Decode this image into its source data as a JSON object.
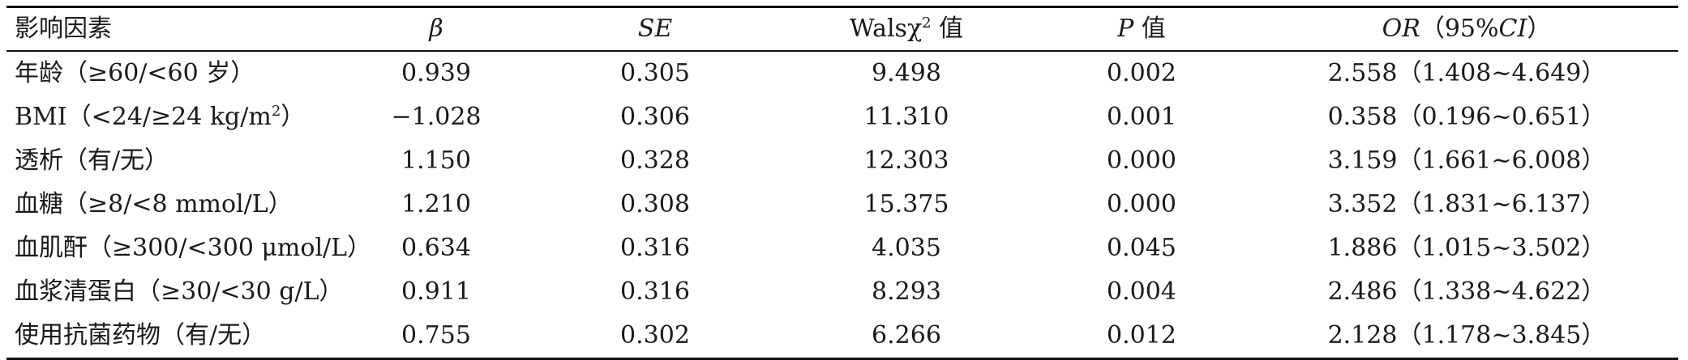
{
  "table": {
    "headers": {
      "factor": "影响因素",
      "beta": "β",
      "se": "SE",
      "wals_prefix": "Walsχ",
      "wals_sup": "2",
      "wals_suffix": " 值",
      "p_italic": "P",
      "p_suffix": " 值",
      "or_italic": "OR",
      "or_mid": "（95%",
      "or_ci": "CI",
      "or_end": "）"
    },
    "rows": [
      {
        "factor": "年龄（≥60/<60 岁）",
        "beta": "0.939",
        "se": "0.305",
        "wals": "9.498",
        "p": "0.002",
        "or": "2.558（1.408~4.649）"
      },
      {
        "factor_prefix": "BMI（<24/≥24 kg/m",
        "factor_sup": "2",
        "factor_suffix": "）",
        "beta": "−1.028",
        "se": "0.306",
        "wals": "11.310",
        "p": "0.001",
        "or": "0.358（0.196~0.651）"
      },
      {
        "factor": "透析（有/无）",
        "beta": "1.150",
        "se": "0.328",
        "wals": "12.303",
        "p": "0.000",
        "or": "3.159（1.661~6.008）"
      },
      {
        "factor": "血糖（≥8/<8 mmol/L）",
        "beta": "1.210",
        "se": "0.308",
        "wals": "15.375",
        "p": "0.000",
        "or": "3.352（1.831~6.137）"
      },
      {
        "factor": "血肌酐（≥300/<300 μmol/L）",
        "beta": "0.634",
        "se": "0.316",
        "wals": "4.035",
        "p": "0.045",
        "or": "1.886（1.015~3.502）"
      },
      {
        "factor": "血浆清蛋白（≥30/<30 g/L）",
        "beta": "0.911",
        "se": "0.316",
        "wals": "8.293",
        "p": "0.004",
        "or": "2.486（1.338~4.622）"
      },
      {
        "factor": "使用抗菌药物（有/无）",
        "beta": "0.755",
        "se": "0.302",
        "wals": "6.266",
        "p": "0.012",
        "or": "2.128（1.178~3.845）"
      }
    ]
  }
}
